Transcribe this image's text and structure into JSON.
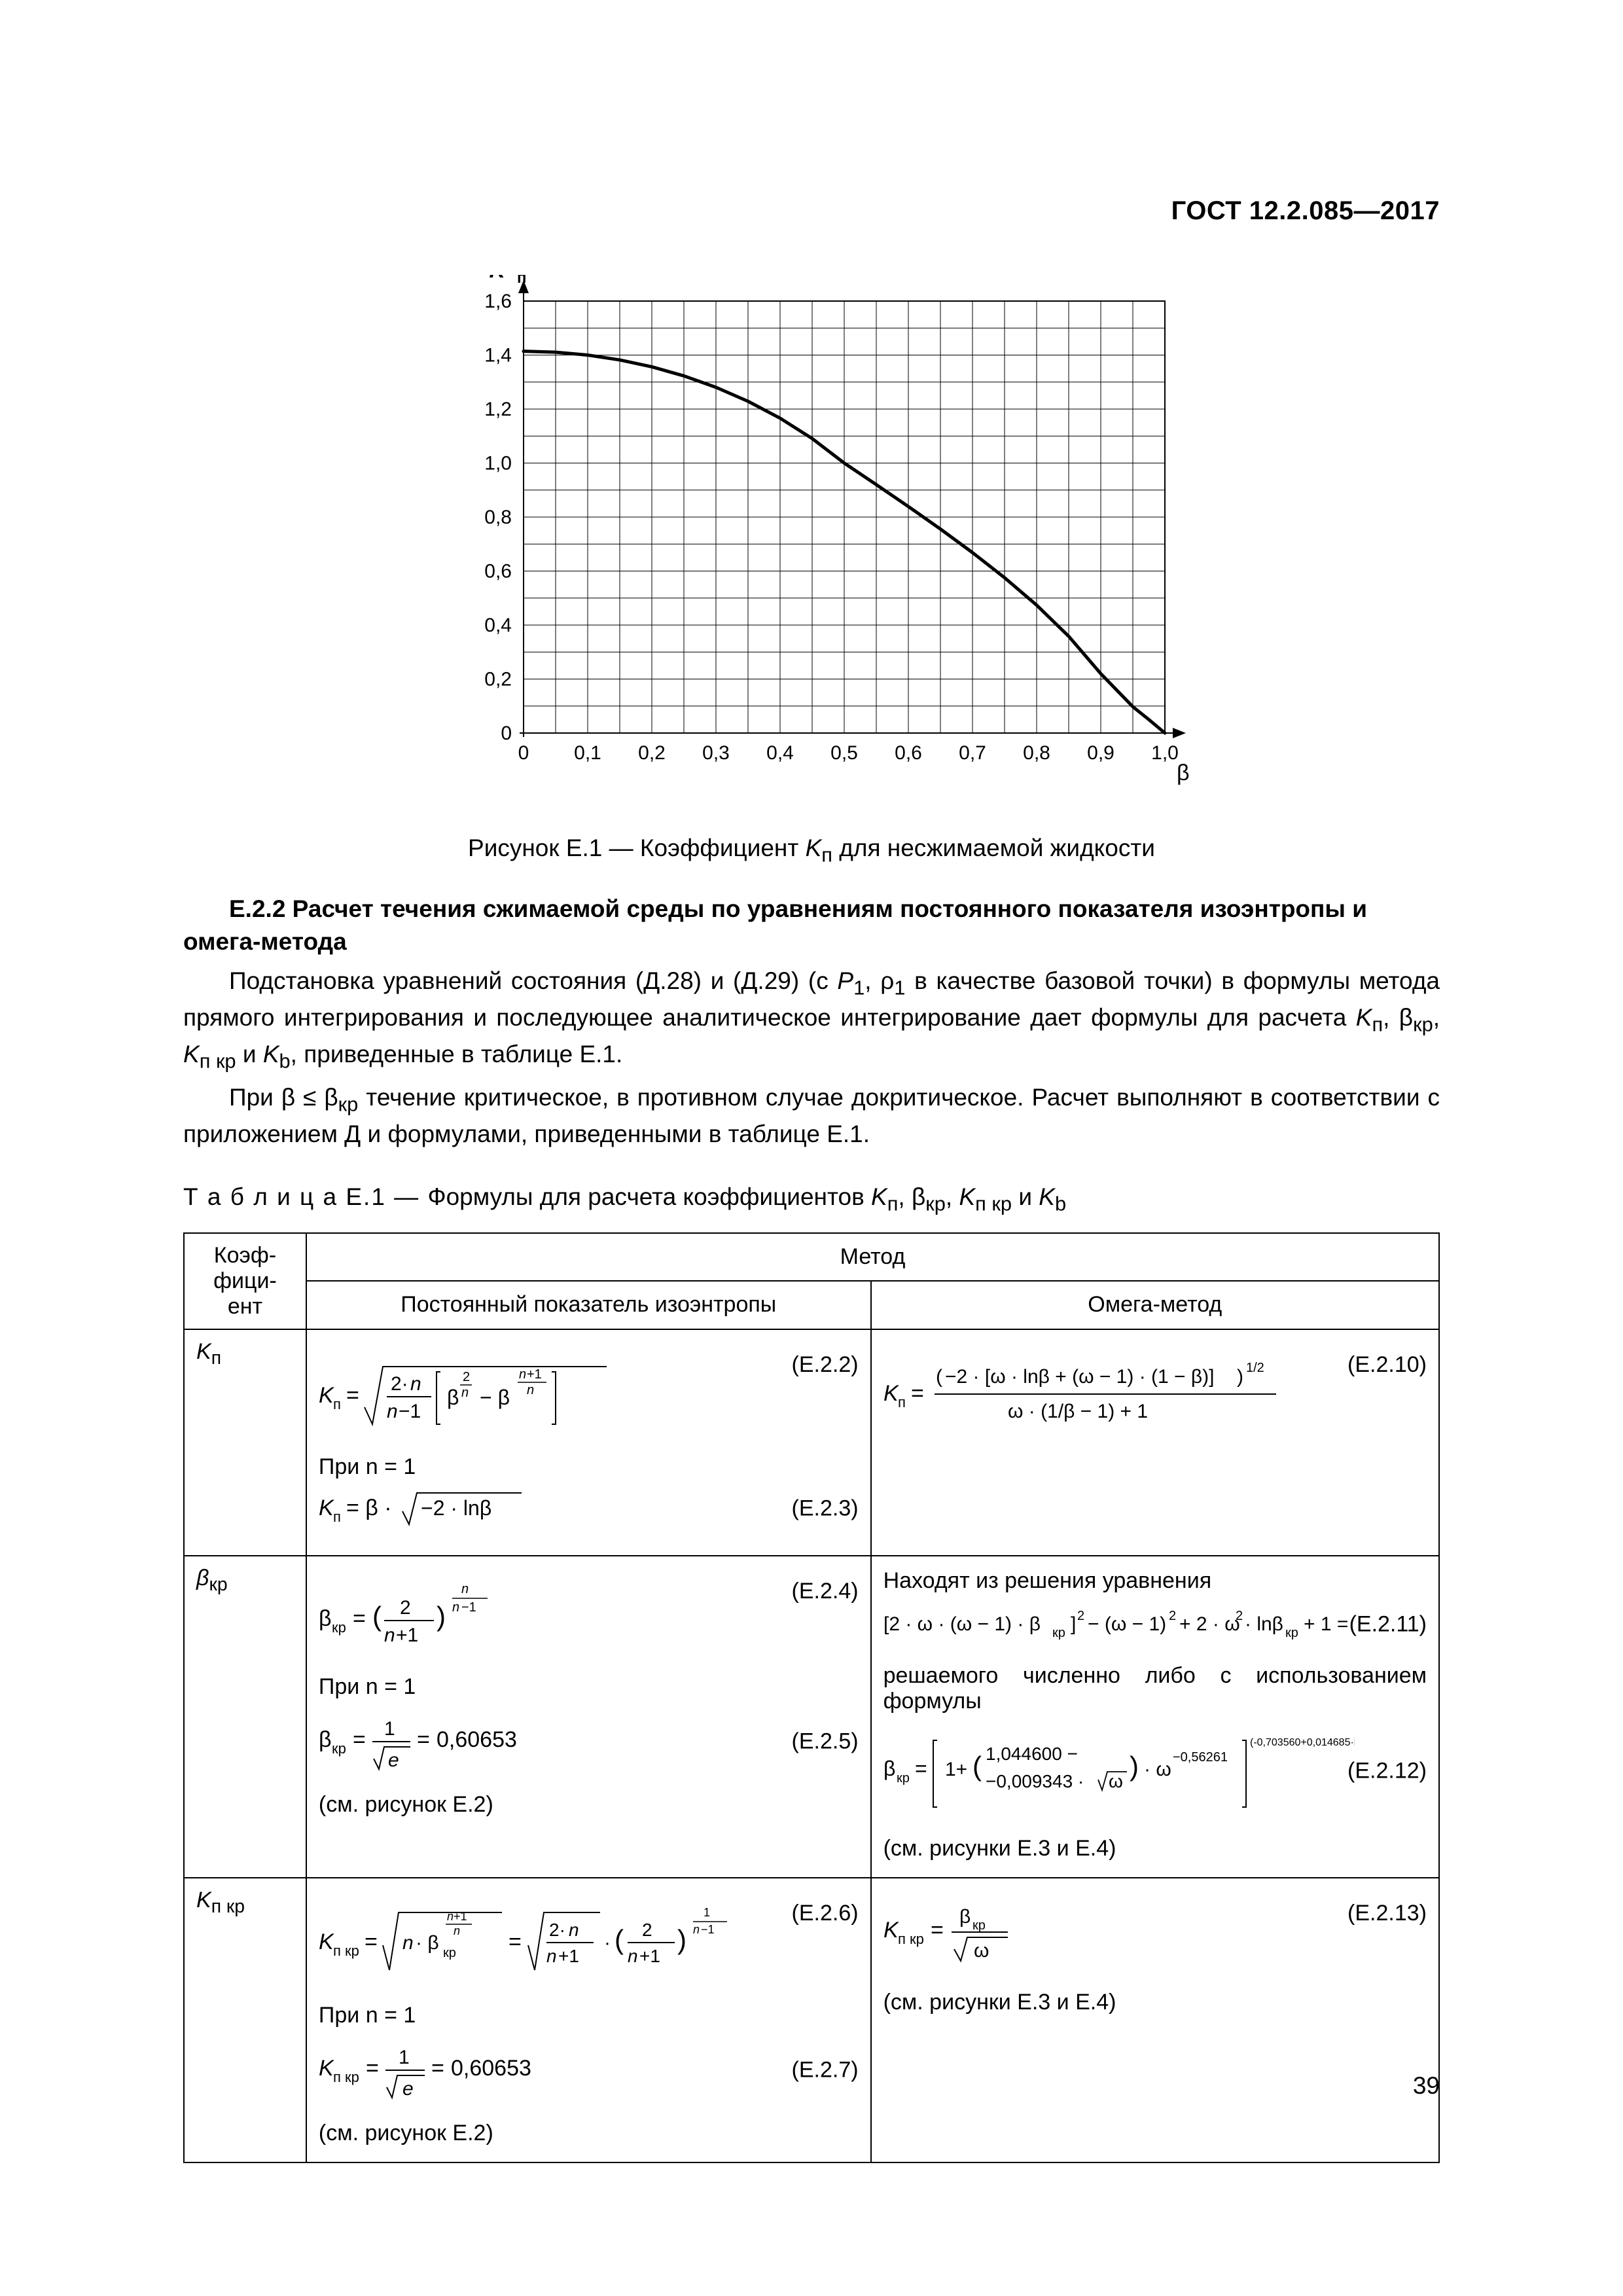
{
  "doc_header": "ГОСТ 12.2.085—2017",
  "page_number": "39",
  "chart": {
    "y_label": "Kп",
    "x_label": "β",
    "y_ticks": [
      "0",
      "0,2",
      "0,4",
      "0,6",
      "0,8",
      "1,0",
      "1,2",
      "1,4",
      "1,6"
    ],
    "x_ticks": [
      "0",
      "0,1",
      "0,2",
      "0,3",
      "0,4",
      "0,5",
      "0,6",
      "0,7",
      "0,8",
      "0,9",
      "1,0"
    ],
    "ylim": [
      0,
      1.6
    ],
    "xlim": [
      0,
      1.0
    ],
    "grid_color": "#000000",
    "line_color": "#000000",
    "line_width": 5,
    "background": "#ffffff",
    "points_x": [
      0,
      0.05,
      0.1,
      0.15,
      0.2,
      0.25,
      0.3,
      0.35,
      0.4,
      0.45,
      0.5,
      0.55,
      0.6,
      0.65,
      0.7,
      0.75,
      0.8,
      0.85,
      0.9,
      0.95,
      0.975,
      0.99,
      1.0
    ],
    "points_y": [
      1.4142,
      1.4107,
      1.4,
      1.382,
      1.3565,
      1.3229,
      1.2806,
      1.2288,
      1.1662,
      1.0909,
      1.0,
      0.9201,
      0.839,
      0.7556,
      0.6683,
      0.5754,
      0.4738,
      0.3584,
      0.2199,
      0.0975,
      0.0498,
      0.02,
      0.0
    ]
  },
  "fig_caption_prefix": "Рисунок Е.1 — Коэффициент ",
  "fig_caption_K": "K",
  "fig_caption_sub": "п",
  "fig_caption_suffix": " для несжимаемой жидкости",
  "sect_heading": "Е.2.2 Расчет течения сжимаемой среды по уравнениям постоянного показателя изоэнтропы и омега-метода",
  "para1_a": "Подстановка уравнений состояния (Д.28) и (Д.29) (с ",
  "para1_b": "P",
  "para1_c": "1",
  "para1_d": ", ρ",
  "para1_e": "1",
  "para1_f": " в качестве базовой точки) в формулы метода прямого интегрирования и последующее аналитическое интегрирование дает формулы для расчета ",
  "para1_g": "K",
  "para1_h": "п",
  "para1_i": ", β",
  "para1_j": "кр",
  "para1_k": ", ",
  "para1_l": "K",
  "para1_m": "п кр",
  "para1_n": " и ",
  "para1_o": "K",
  "para1_p": "b",
  "para1_q": ", приведенные в таблице Е.1.",
  "para2_a": "При β ≤ β",
  "para2_b": "кр",
  "para2_c": "  течение критическое, в противном случае докритическое. Расчет выполняют в соответствии с приложением Д и формулами, приведенными в таблице Е.1.",
  "table_title_a": "Т а б л и ц а  Е.1 — ",
  "table_title_b": "Формулы для расчета коэффициентов ",
  "table_title_c": "K",
  "table_title_d": "п",
  "table_title_e": ", β",
  "table_title_f": "кр",
  "table_title_g": ", ",
  "table_title_h": "K",
  "table_title_i": "п кр",
  "table_title_j": " и ",
  "table_title_k": "K",
  "table_title_l": "b",
  "th_coef": "Коэф-\nфици-\nент",
  "th_method": "Метод",
  "th_iso": "Постоянный показатель изоэнтропы",
  "th_omega": "Омега-метод",
  "row1_label": "Kп",
  "row2_label": "βкр",
  "row3_label": "Kп кр",
  "eq": {
    "e22": "(Е.2.2)",
    "e23": "(Е.2.3)",
    "e24": "(Е.2.4)",
    "e25": "(Е.2.5)",
    "e26": "(Е.2.6)",
    "e27": "(Е.2.7)",
    "e210": "(Е.2.10)",
    "e211": "(Е.2.11)",
    "e212": "(Е.2.12)",
    "e213": "(Е.2.13)"
  },
  "txt_pri_n1": "При n = 1",
  "txt_see_e2": "(см. рисунок Е.2)",
  "txt_see_e34": "(см. рисунки Е.3 и Е.4)",
  "txt_find_eq": "Находят из решения уравнения",
  "txt_solved": "решаемого численно либо с использованием формулы",
  "val_060653": "0,60653"
}
